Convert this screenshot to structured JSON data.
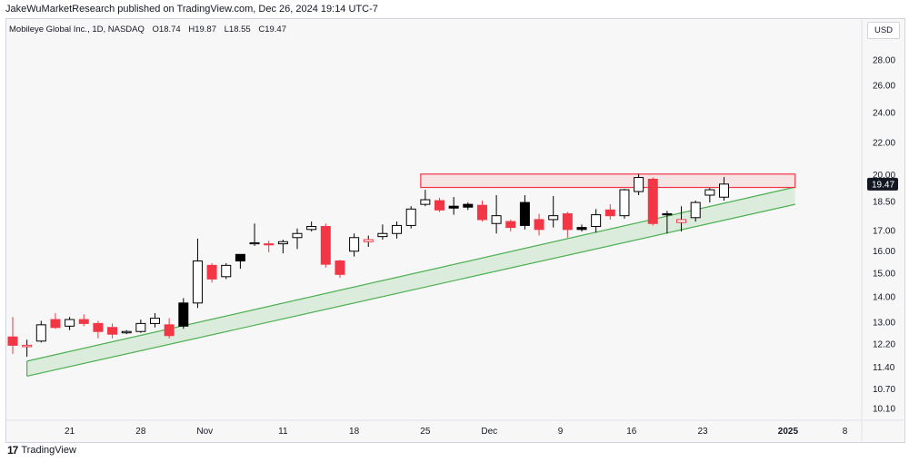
{
  "header": {
    "published": "JakeWuMarketResearch published on TradingView.com, Dec 26, 2024 19:14 UTC-7",
    "instrument": "Mobileye Global Inc., 1D, NASDAQ",
    "ohlc": {
      "o": "O18.74",
      "h": "H19.87",
      "l": "L18.55",
      "c": "C19.47"
    },
    "currency": "USD"
  },
  "footer": {
    "brand": "TradingView",
    "logo_glyph": "17"
  },
  "colors": {
    "up": "#ffffff",
    "down": "#f23645",
    "down_alt": "#000000",
    "support": "#4caf50",
    "resistance": "#f23645"
  },
  "chart_data": {
    "type": "candlestick",
    "title": "Mobileye Global Inc., 1D, NASDAQ",
    "ylim": [
      9.8,
      30.4
    ],
    "y_scale": "log",
    "y_ticks": [
      "28.00",
      "26.00",
      "24.00",
      "22.00",
      "20.00",
      "18.50",
      "17.00",
      "16.00",
      "15.00",
      "14.00",
      "13.00",
      "12.20",
      "11.40",
      "10.70",
      "10.10"
    ],
    "y_tick_values": [
      28.0,
      26.0,
      24.0,
      22.0,
      20.0,
      18.5,
      17.0,
      16.0,
      15.0,
      14.0,
      13.0,
      12.2,
      11.4,
      10.7,
      10.1
    ],
    "x_labels": [
      {
        "label": "21",
        "index": 4
      },
      {
        "label": "28",
        "index": 9
      },
      {
        "label": "Nov",
        "index": 13.5
      },
      {
        "label": "11",
        "index": 19
      },
      {
        "label": "18",
        "index": 24
      },
      {
        "label": "25",
        "index": 29
      },
      {
        "label": "Dec",
        "index": 33.5
      },
      {
        "label": "9",
        "index": 38.5
      },
      {
        "label": "16",
        "index": 43.5
      },
      {
        "label": "23",
        "index": 48.5
      },
      {
        "label": "2025",
        "index": 54.5
      },
      {
        "label": "8",
        "index": 58.5
      }
    ],
    "last_price": "19.47",
    "candles": [
      {
        "o": 12.45,
        "h": 13.2,
        "l": 11.85,
        "c": 12.15,
        "color": "red"
      },
      {
        "o": 12.1,
        "h": 12.35,
        "l": 11.75,
        "c": 12.15,
        "color": "outline_red"
      },
      {
        "o": 12.3,
        "h": 13.05,
        "l": 12.25,
        "c": 12.9,
        "color": "white"
      },
      {
        "o": 13.1,
        "h": 13.35,
        "l": 12.75,
        "c": 12.8,
        "color": "red"
      },
      {
        "o": 12.85,
        "h": 13.2,
        "l": 12.7,
        "c": 13.1,
        "color": "white"
      },
      {
        "o": 13.1,
        "h": 13.3,
        "l": 12.85,
        "c": 12.95,
        "color": "red"
      },
      {
        "o": 12.95,
        "h": 13.05,
        "l": 12.4,
        "c": 12.65,
        "color": "red"
      },
      {
        "o": 12.8,
        "h": 12.95,
        "l": 12.4,
        "c": 12.55,
        "color": "red"
      },
      {
        "o": 12.6,
        "h": 12.7,
        "l": 12.55,
        "c": 12.65,
        "color": "white"
      },
      {
        "o": 12.65,
        "h": 13.1,
        "l": 12.6,
        "c": 12.95,
        "color": "white"
      },
      {
        "o": 12.95,
        "h": 13.35,
        "l": 12.8,
        "c": 13.15,
        "color": "white"
      },
      {
        "o": 12.9,
        "h": 13.15,
        "l": 12.4,
        "c": 12.5,
        "color": "red"
      },
      {
        "o": 12.85,
        "h": 13.95,
        "l": 12.75,
        "c": 13.75,
        "color": "black"
      },
      {
        "o": 13.75,
        "h": 16.6,
        "l": 13.55,
        "c": 15.55,
        "color": "white"
      },
      {
        "o": 15.35,
        "h": 15.45,
        "l": 14.6,
        "c": 14.75,
        "color": "red"
      },
      {
        "o": 14.85,
        "h": 15.45,
        "l": 14.75,
        "c": 15.35,
        "color": "white"
      },
      {
        "o": 15.55,
        "h": 15.85,
        "l": 15.2,
        "c": 15.85,
        "color": "black"
      },
      {
        "o": 16.35,
        "h": 17.35,
        "l": 16.25,
        "c": 16.4,
        "color": "white"
      },
      {
        "o": 16.35,
        "h": 16.5,
        "l": 15.95,
        "c": 16.3,
        "color": "red"
      },
      {
        "o": 16.35,
        "h": 16.55,
        "l": 15.9,
        "c": 16.45,
        "color": "white"
      },
      {
        "o": 16.65,
        "h": 17.1,
        "l": 16.1,
        "c": 16.85,
        "color": "white"
      },
      {
        "o": 17.05,
        "h": 17.45,
        "l": 16.95,
        "c": 17.2,
        "color": "white"
      },
      {
        "o": 17.2,
        "h": 17.35,
        "l": 15.25,
        "c": 15.4,
        "color": "red"
      },
      {
        "o": 15.55,
        "h": 15.6,
        "l": 14.8,
        "c": 14.95,
        "color": "red"
      },
      {
        "o": 16.0,
        "h": 16.85,
        "l": 15.75,
        "c": 16.65,
        "color": "white"
      },
      {
        "o": 16.55,
        "h": 16.75,
        "l": 16.2,
        "c": 16.45,
        "color": "outline_red"
      },
      {
        "o": 16.7,
        "h": 17.3,
        "l": 16.55,
        "c": 16.85,
        "color": "white"
      },
      {
        "o": 16.85,
        "h": 17.45,
        "l": 16.6,
        "c": 17.25,
        "color": "white"
      },
      {
        "o": 17.25,
        "h": 18.25,
        "l": 17.1,
        "c": 18.1,
        "color": "white"
      },
      {
        "o": 18.35,
        "h": 19.15,
        "l": 18.25,
        "c": 18.6,
        "color": "white"
      },
      {
        "o": 18.55,
        "h": 18.7,
        "l": 17.95,
        "c": 18.05,
        "color": "red"
      },
      {
        "o": 18.25,
        "h": 18.75,
        "l": 17.8,
        "c": 18.15,
        "color": "black"
      },
      {
        "o": 18.2,
        "h": 18.45,
        "l": 18.05,
        "c": 18.35,
        "color": "black"
      },
      {
        "o": 18.3,
        "h": 18.55,
        "l": 17.45,
        "c": 17.55,
        "color": "red"
      },
      {
        "o": 17.35,
        "h": 18.85,
        "l": 16.85,
        "c": 17.75,
        "color": "white"
      },
      {
        "o": 17.45,
        "h": 17.55,
        "l": 16.95,
        "c": 17.15,
        "color": "red"
      },
      {
        "o": 18.45,
        "h": 18.85,
        "l": 17.05,
        "c": 17.25,
        "color": "black"
      },
      {
        "o": 17.55,
        "h": 17.85,
        "l": 16.75,
        "c": 17.05,
        "color": "red"
      },
      {
        "o": 17.55,
        "h": 18.8,
        "l": 17.15,
        "c": 17.75,
        "color": "white"
      },
      {
        "o": 17.85,
        "h": 17.95,
        "l": 16.65,
        "c": 17.05,
        "color": "red"
      },
      {
        "o": 17.05,
        "h": 17.3,
        "l": 16.95,
        "c": 17.15,
        "color": "black"
      },
      {
        "o": 17.2,
        "h": 18.1,
        "l": 16.9,
        "c": 17.8,
        "color": "white"
      },
      {
        "o": 17.75,
        "h": 18.35,
        "l": 17.55,
        "c": 18.05,
        "color": "red"
      },
      {
        "o": 17.75,
        "h": 19.2,
        "l": 17.6,
        "c": 19.15,
        "color": "white"
      },
      {
        "o": 19.05,
        "h": 20.05,
        "l": 18.85,
        "c": 19.85,
        "color": "white"
      },
      {
        "o": 19.75,
        "h": 19.85,
        "l": 17.25,
        "c": 17.35,
        "color": "red"
      },
      {
        "o": 17.85,
        "h": 18.0,
        "l": 16.85,
        "c": 17.85,
        "color": "black"
      },
      {
        "o": 17.4,
        "h": 18.25,
        "l": 16.95,
        "c": 17.55,
        "color": "outline_red"
      },
      {
        "o": 17.65,
        "h": 18.55,
        "l": 17.45,
        "c": 18.45,
        "color": "white"
      },
      {
        "o": 18.85,
        "h": 19.25,
        "l": 18.45,
        "c": 19.15,
        "color": "white"
      },
      {
        "o": 18.74,
        "h": 19.87,
        "l": 18.55,
        "c": 19.47,
        "color": "white"
      }
    ],
    "resistance_zone": {
      "top": 20.05,
      "bottom": 19.28,
      "from_index": 29,
      "to_index": 55
    },
    "support_channel": {
      "upper": [
        {
          "index": 1,
          "value": 11.6
        },
        {
          "index": 55,
          "value": 19.3
        }
      ],
      "lower": [
        {
          "index": 1,
          "value": 11.1
        },
        {
          "index": 55,
          "value": 18.35
        }
      ]
    }
  }
}
